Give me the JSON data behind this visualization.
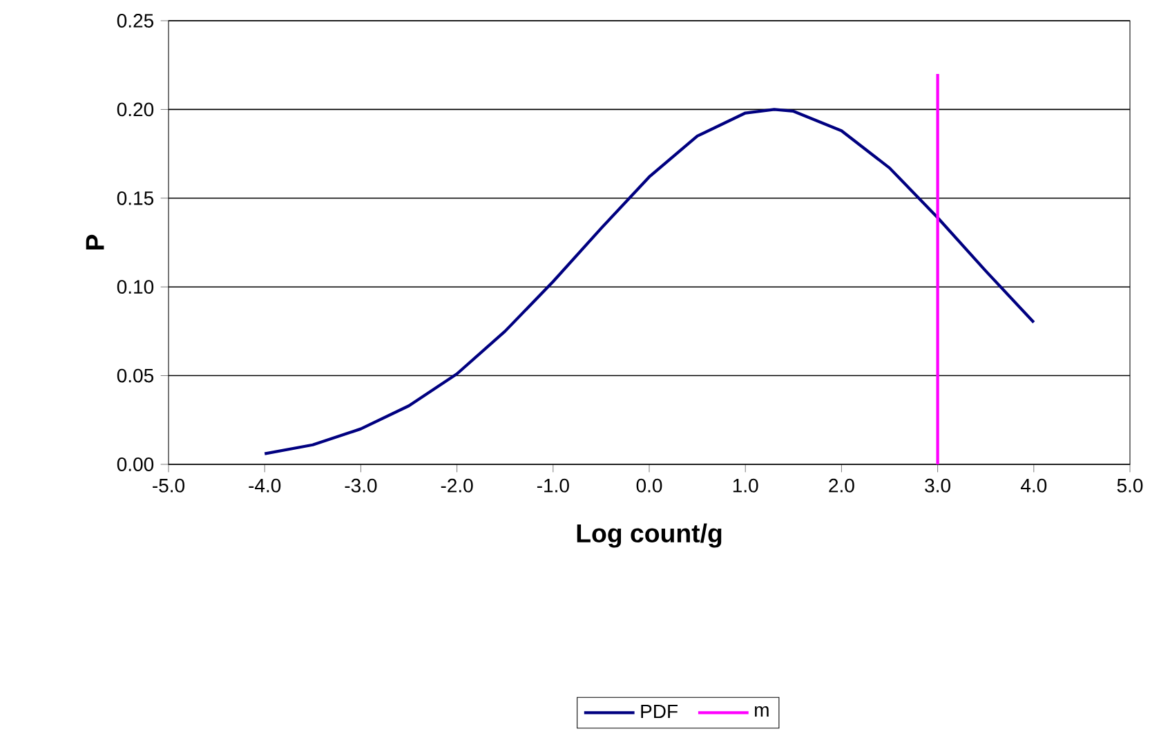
{
  "chart_data": {
    "type": "line",
    "xlabel": "Log count/g",
    "ylabel": "P",
    "xlim": [
      -5,
      5
    ],
    "ylim": [
      0,
      0.25
    ],
    "xticks": [
      {
        "value": -5,
        "label": "-5.0"
      },
      {
        "value": -4,
        "label": "-4.0"
      },
      {
        "value": -3,
        "label": "-3.0"
      },
      {
        "value": -2,
        "label": "-2.0"
      },
      {
        "value": -1,
        "label": "-1.0"
      },
      {
        "value": 0,
        "label": "0.0"
      },
      {
        "value": 1,
        "label": "1.0"
      },
      {
        "value": 2,
        "label": "2.0"
      },
      {
        "value": 3,
        "label": "3.0"
      },
      {
        "value": 4,
        "label": "4.0"
      },
      {
        "value": 5,
        "label": "5.0"
      }
    ],
    "yticks": [
      {
        "value": 0,
        "label": "0.00"
      },
      {
        "value": 0.05,
        "label": "0.05"
      },
      {
        "value": 0.1,
        "label": "0.10"
      },
      {
        "value": 0.15,
        "label": "0.15"
      },
      {
        "value": 0.2,
        "label": "0.20"
      },
      {
        "value": 0.25,
        "label": "0.25"
      }
    ],
    "grid": "y",
    "legend": "bottom",
    "marker": "none",
    "line_style": "solid",
    "series": [
      {
        "name": "PDF",
        "color": "#000080",
        "x": [
          -4,
          -3.5,
          -3,
          -2.5,
          -2,
          -1.5,
          -1,
          -0.5,
          0,
          0.5,
          1,
          1.3,
          1.5,
          2,
          2.5,
          3,
          3.5,
          4
        ],
        "values": [
          0.006,
          0.011,
          0.02,
          0.033,
          0.051,
          0.075,
          0.103,
          0.133,
          0.162,
          0.185,
          0.198,
          0.2,
          0.199,
          0.188,
          0.167,
          0.139,
          0.109,
          0.08
        ]
      },
      {
        "name": "m",
        "color": "#ff00ff",
        "x": [
          3,
          3
        ],
        "values": [
          0,
          0.22
        ]
      }
    ]
  }
}
